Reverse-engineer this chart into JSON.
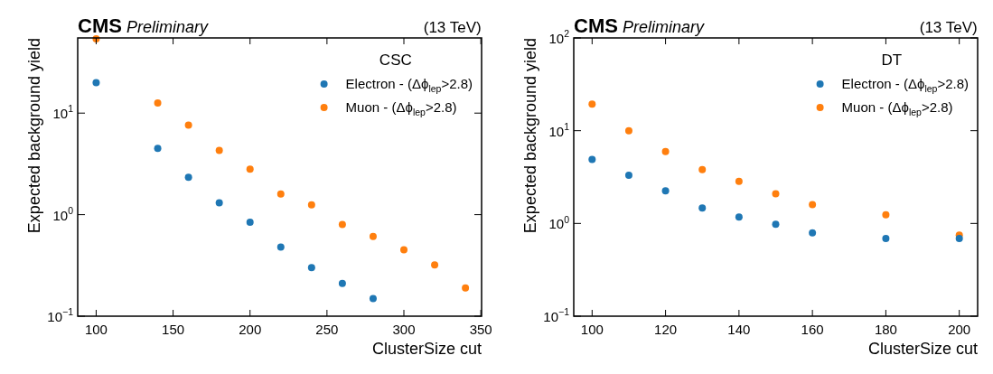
{
  "chart_data": [
    {
      "type": "scatter",
      "title": "CMS",
      "subtitle": "Preliminary",
      "annotations": [
        "(13 TeV)"
      ],
      "xlabel": "ClusterSize cut",
      "ylabel": "Expected background yield",
      "legend_title": "CSC",
      "legend": "top right",
      "marker": "circle",
      "grid": false,
      "log": "y",
      "xlim": [
        88,
        350.5
      ],
      "xticks": [
        100,
        150,
        200,
        250,
        300,
        350
      ],
      "ylim": [
        0.1,
        55
      ],
      "yticks": [
        {
          "value": 0.1,
          "label": "10$^{−1}$"
        },
        {
          "value": 1,
          "label": "10$^{0}$"
        },
        {
          "value": 10,
          "label": "10$^{1}$"
        }
      ],
      "series": [
        {
          "name": "Electron - (Δϕ$_{lep}$>2.8)",
          "color": "#1f77b4",
          "x": [
            100,
            140,
            160,
            180,
            200,
            220,
            240,
            260,
            280
          ],
          "values": [
            20,
            4.5,
            2.33,
            1.31,
            0.84,
            0.48,
            0.3,
            0.21,
            0.149
          ]
        },
        {
          "name": "Muon - (Δϕ$_{lep}$>2.8)",
          "color": "#ff7f0e",
          "x": [
            100,
            140,
            160,
            180,
            200,
            220,
            240,
            260,
            280,
            300,
            320,
            340
          ],
          "values": [
            54,
            12.6,
            7.6,
            4.3,
            2.8,
            1.6,
            1.25,
            0.8,
            0.61,
            0.45,
            0.32,
            0.19
          ]
        }
      ]
    },
    {
      "type": "scatter",
      "title": "CMS",
      "subtitle": "Preliminary",
      "annotations": [
        "(13 TeV)"
      ],
      "xlabel": "ClusterSize cut",
      "ylabel": "Expected background yield",
      "legend_title": "DT",
      "legend": "top right",
      "marker": "circle",
      "grid": false,
      "log": "y",
      "xlim": [
        95,
        205
      ],
      "xticks": [
        100,
        120,
        140,
        160,
        180,
        200
      ],
      "ylim": [
        0.1,
        100
      ],
      "yticks": [
        {
          "value": 0.1,
          "label": "10$^{−1}$"
        },
        {
          "value": 1,
          "label": "10$^{0}$"
        },
        {
          "value": 10,
          "label": "10$^{1}$"
        },
        {
          "value": 100,
          "label": "10$^{2}$"
        }
      ],
      "series": [
        {
          "name": "Electron - (Δϕ$_{lep}$>2.8)",
          "color": "#1f77b4",
          "x": [
            100,
            110,
            120,
            130,
            140,
            150,
            160,
            180,
            200
          ],
          "values": [
            4.9,
            3.3,
            2.25,
            1.47,
            1.17,
            0.98,
            0.79,
            0.69,
            0.69
          ]
        },
        {
          "name": "Muon - (Δϕ$_{lep}$>2.8)",
          "color": "#ff7f0e",
          "x": [
            100,
            110,
            120,
            130,
            140,
            150,
            160,
            180,
            200
          ],
          "values": [
            19.3,
            10,
            5.96,
            3.8,
            2.84,
            2.09,
            1.6,
            1.24,
            0.75
          ]
        }
      ]
    }
  ]
}
